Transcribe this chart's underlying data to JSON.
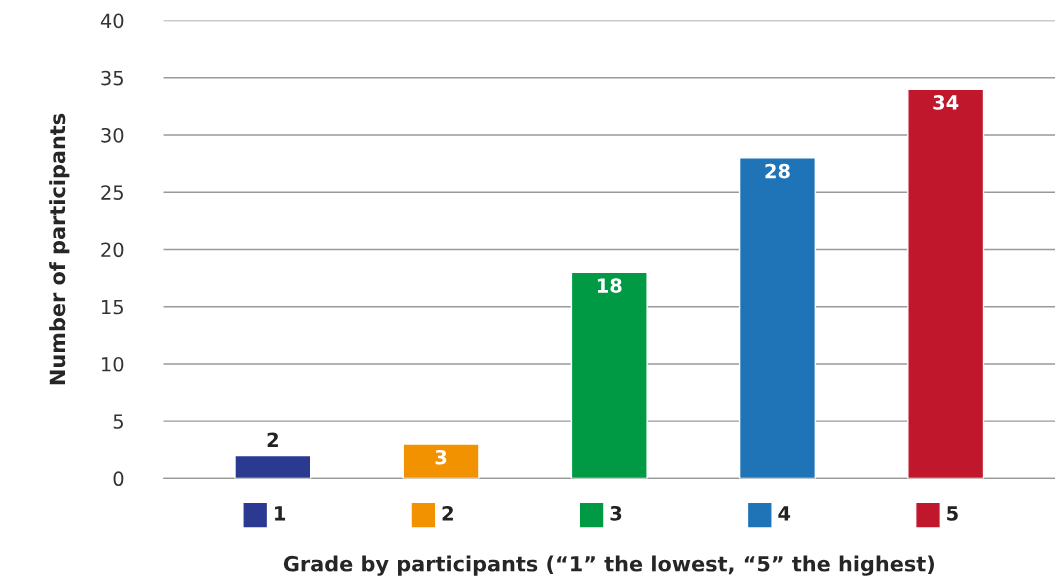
{
  "chart_data": {
    "type": "bar",
    "xlabel": "Grade by participants (“1” the lowest, “5” the highest)",
    "ylabel": "Number of participants",
    "categories": [
      "1",
      "2",
      "3",
      "4",
      "5"
    ],
    "values": [
      2,
      3,
      18,
      28,
      34
    ],
    "colors": [
      "#2b3990",
      "#f39200",
      "#009a44",
      "#1f73b7",
      "#c1172c"
    ],
    "ylim": [
      0,
      40
    ],
    "yticks": [
      0,
      5,
      10,
      15,
      20,
      25,
      30,
      35,
      40
    ],
    "grid": "y",
    "data_labels": true
  }
}
